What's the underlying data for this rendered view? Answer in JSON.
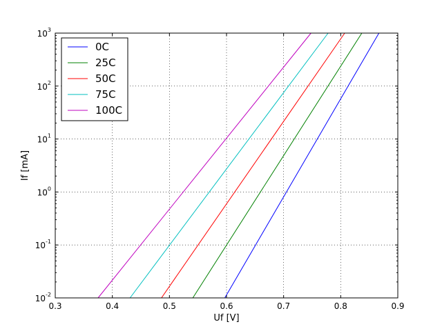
{
  "chart_data": {
    "type": "line",
    "title": "",
    "xlabel": "Uf [V]",
    "ylabel": "If [mA]",
    "xlim": [
      0.3,
      0.9
    ],
    "ylim": [
      0.01,
      1000
    ],
    "yscale": "log",
    "grid": true,
    "legend_position": "top-left",
    "x_ticks": [
      "0.3",
      "0.4",
      "0.5",
      "0.6",
      "0.7",
      "0.8",
      "0.9"
    ],
    "y_ticks": [
      {
        "base": "10",
        "exp": "-2",
        "value": 0.01
      },
      {
        "base": "10",
        "exp": "-1",
        "value": 0.1
      },
      {
        "base": "10",
        "exp": "0",
        "value": 1
      },
      {
        "base": "10",
        "exp": "1",
        "value": 10
      },
      {
        "base": "10",
        "exp": "2",
        "value": 100
      },
      {
        "base": "10",
        "exp": "3",
        "value": 1000
      }
    ],
    "series": [
      {
        "name": "0C",
        "color": "#0000ff",
        "x": [
          0.597,
          0.867
        ],
        "y": [
          0.01,
          1000
        ]
      },
      {
        "name": "25C",
        "color": "#008000",
        "x": [
          0.541,
          0.837
        ],
        "y": [
          0.01,
          1000
        ]
      },
      {
        "name": "50C",
        "color": "#ff0000",
        "x": [
          0.486,
          0.807
        ],
        "y": [
          0.01,
          1000
        ]
      },
      {
        "name": "75C",
        "color": "#00bfbf",
        "x": [
          0.431,
          0.778
        ],
        "y": [
          0.01,
          1000
        ]
      },
      {
        "name": "100C",
        "color": "#bf00bf",
        "x": [
          0.375,
          0.748
        ],
        "y": [
          0.01,
          1000
        ]
      }
    ]
  }
}
